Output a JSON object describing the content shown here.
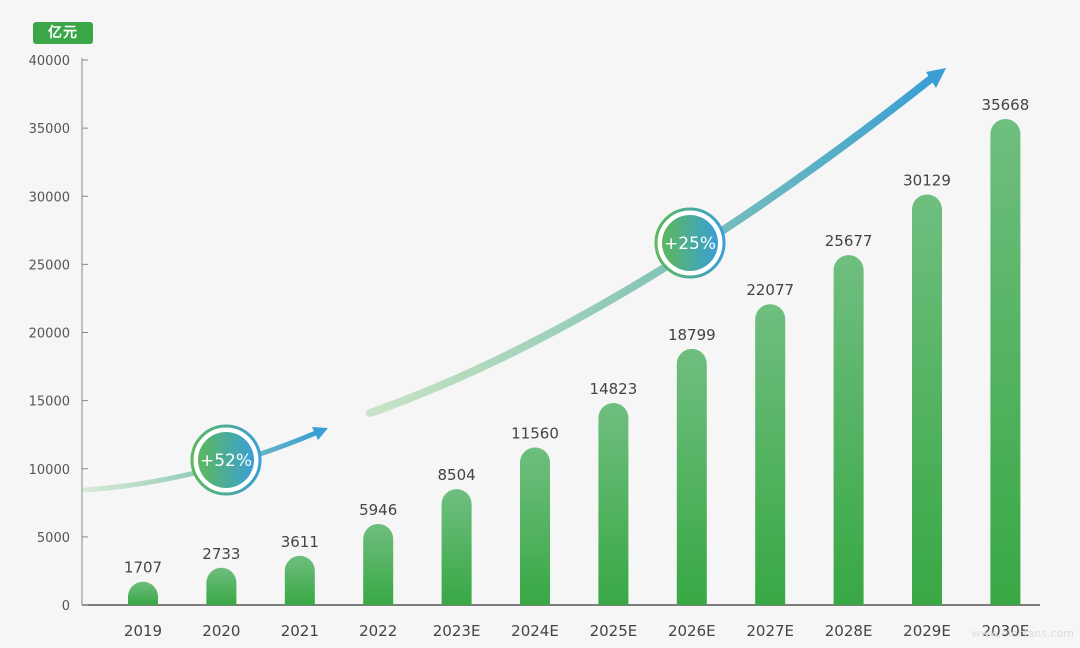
{
  "chart_data": {
    "type": "bar",
    "unit": "亿元",
    "categories": [
      "2019",
      "2020",
      "2021",
      "2022",
      "2023E",
      "2024E",
      "2025E",
      "2026E",
      "2027E",
      "2028E",
      "2029E",
      "2030E"
    ],
    "values": [
      1707,
      2733,
      3611,
      5946,
      8504,
      11560,
      14823,
      18799,
      22077,
      25677,
      30129,
      35668
    ],
    "yticks": [
      0,
      5000,
      10000,
      15000,
      20000,
      25000,
      30000,
      35000,
      40000
    ],
    "ylim": [
      0,
      40000
    ],
    "grid": false,
    "legend": "none",
    "annotations": [
      {
        "text": "+52%",
        "period": [
          "2019",
          "2022"
        ]
      },
      {
        "text": "+25%",
        "period": [
          "2022",
          "2030E"
        ]
      }
    ],
    "colors": {
      "bar_top": "#6fbe7f",
      "bar_bottom": "#38a844",
      "arrow_start": "#5cb85c",
      "arrow_end": "#3a9fd6",
      "badge": "#3aa648"
    }
  },
  "watermark": "www.elecfans.com"
}
